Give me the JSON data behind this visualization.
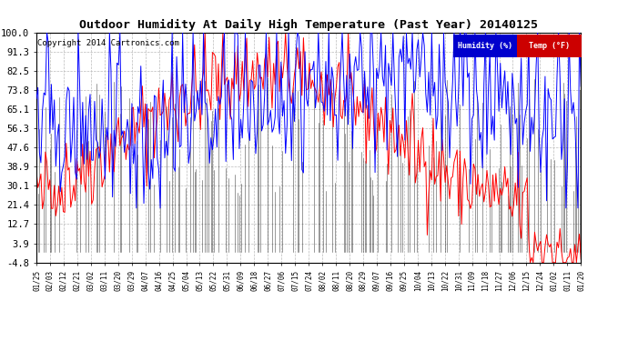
{
  "title": "Outdoor Humidity At Daily High Temperature (Past Year) 20140125",
  "copyright": "Copyright 2014 Cartronics.com",
  "legend_humidity": "Humidity (%)",
  "legend_temp": "Temp (°F)",
  "yticks": [
    100.0,
    91.3,
    82.5,
    73.8,
    65.1,
    56.3,
    47.6,
    38.9,
    30.1,
    21.4,
    12.7,
    3.9,
    -4.8
  ],
  "ylim": [
    -4.8,
    100.0
  ],
  "bg_color": "#ffffff",
  "grid_color": "#bbbbbb",
  "humidity_color": "#0000ff",
  "temp_color": "#ff0000",
  "black_color": "#000000",
  "legend_humidity_bg": "#0000cd",
  "legend_temp_bg": "#cc0000",
  "title_fontsize": 9.5,
  "copyright_fontsize": 6.5,
  "xtick_fontsize": 5.5,
  "ytick_fontsize": 7.5,
  "x_labels": [
    "01/25",
    "02/03",
    "02/12",
    "02/21",
    "03/02",
    "03/11",
    "03/20",
    "03/29",
    "04/07",
    "04/16",
    "04/25",
    "05/04",
    "05/13",
    "05/22",
    "05/31",
    "06/09",
    "06/18",
    "06/27",
    "07/06",
    "07/15",
    "07/24",
    "08/02",
    "08/11",
    "08/20",
    "08/29",
    "09/07",
    "09/16",
    "09/25",
    "10/04",
    "10/13",
    "10/22",
    "10/31",
    "11/09",
    "11/18",
    "11/27",
    "12/06",
    "12/15",
    "12/24",
    "01/02",
    "01/11",
    "01/20"
  ]
}
